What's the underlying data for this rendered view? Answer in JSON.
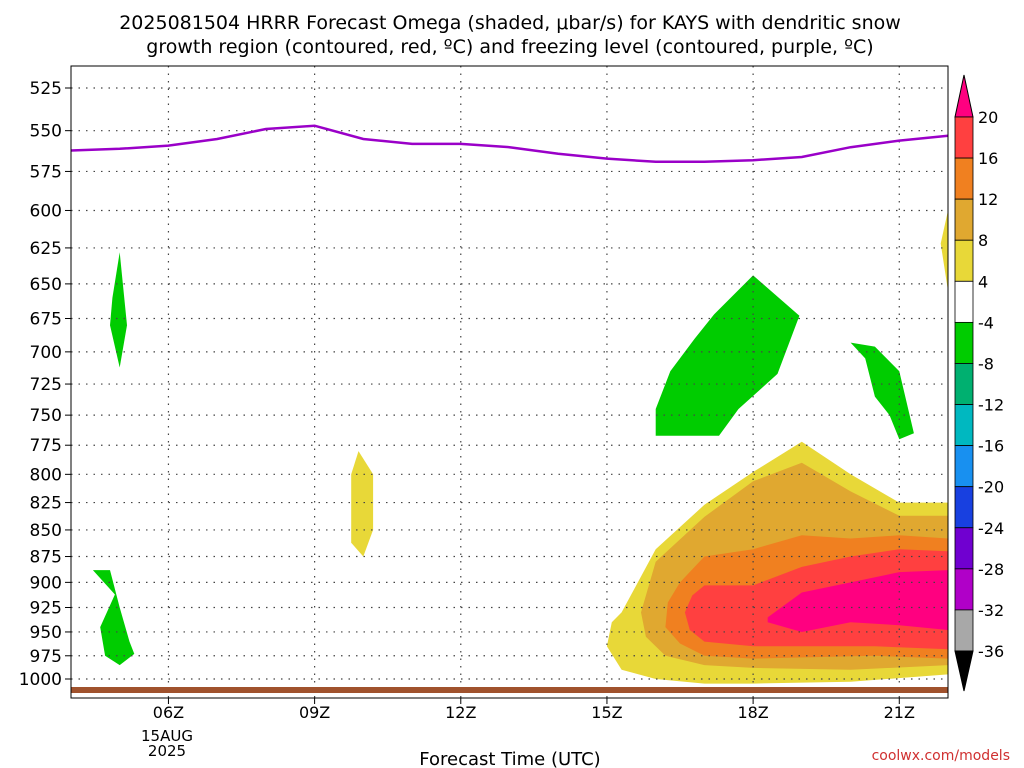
{
  "chart_data": {
    "type": "heatmap",
    "title_lines": [
      "2025081504 HRRR Forecast Omega (shaded, μbar/s) for KAYS with dendritic snow",
      "growth region (contoured, red, ºC) and freezing level (contoured, purple, ºC)"
    ],
    "xlabel": "Forecast Time (UTC)",
    "ylabel": "",
    "x_ticks": [
      "06Z",
      "09Z",
      "12Z",
      "15Z",
      "18Z",
      "21Z"
    ],
    "x_tick_hours": [
      6,
      9,
      12,
      15,
      18,
      21
    ],
    "date_label": [
      "15AUG",
      "2025"
    ],
    "xlim": [
      4.0,
      22.0
    ],
    "y_ticks": [
      525,
      550,
      575,
      600,
      625,
      650,
      675,
      700,
      725,
      750,
      775,
      800,
      825,
      850,
      875,
      900,
      925,
      950,
      975,
      1000
    ],
    "yscale": "log-pressure",
    "ylim": [
      1010,
      512
    ],
    "grid": true,
    "colorbar": {
      "labels": [
        "20",
        "16",
        "12",
        "8",
        "4",
        "-4",
        "-8",
        "-12",
        "-16",
        "-20",
        "-24",
        "-28",
        "-32",
        "-36"
      ],
      "colors": [
        "#ff0080",
        "#ff4040",
        "#f08020",
        "#e0a830",
        "#e8d838",
        "#ffffff",
        "#00cc00",
        "#00b070",
        "#00b8c0",
        "#1890f0",
        "#1840e0",
        "#7000d0",
        "#b000c8",
        "#a8a8a8",
        "#000000"
      ]
    },
    "freezing_level": {
      "color": "#9a00c8",
      "x": [
        4.0,
        5.0,
        6.0,
        7.0,
        8.0,
        9.0,
        10.0,
        11.0,
        12.0,
        13.0,
        14.0,
        15.0,
        16.0,
        17.0,
        18.0,
        19.0,
        20.0,
        21.0,
        22.0
      ],
      "y": [
        562,
        561,
        559,
        555,
        549,
        547,
        555,
        558,
        558,
        560,
        564,
        567,
        569,
        569,
        568,
        566,
        560,
        556,
        553
      ]
    },
    "surface_color": "#a0522d",
    "omega_regions": [
      {
        "color": "#00cc00",
        "x": [
          5.0,
          5.15,
          5.0,
          4.8,
          4.85
        ],
        "y": [
          628,
          680,
          712,
          680,
          660
        ]
      },
      {
        "color": "#00cc00",
        "x": [
          4.45,
          4.8,
          5.0,
          5.2,
          5.3,
          5.0,
          4.7,
          4.6,
          4.9
        ],
        "y": [
          888,
          888,
          925,
          960,
          973,
          985,
          975,
          945,
          912
        ]
      },
      {
        "color": "#e8d838",
        "x": [
          9.9,
          10.2,
          10.2,
          10.0,
          9.75,
          9.75
        ],
        "y": [
          780,
          800,
          850,
          875,
          862,
          800
        ]
      },
      {
        "color": "#00cc00",
        "x": [
          18.0,
          18.95,
          18.5,
          17.7,
          17.3,
          16.0,
          16.0,
          16.3,
          16.8,
          17.2
        ],
        "y": [
          644,
          673,
          717,
          745,
          767,
          767,
          745,
          715,
          690,
          672
        ]
      },
      {
        "color": "#00cc00",
        "x": [
          20.0,
          20.5,
          21.0,
          21.3,
          21.0,
          20.8,
          20.5,
          20.3
        ],
        "y": [
          693,
          696,
          715,
          765,
          770,
          750,
          735,
          705
        ]
      },
      {
        "color": "#e8d838",
        "x": [
          15.3,
          16.0,
          17.0,
          18.0,
          19.0,
          20.0,
          21.0,
          22.0,
          22.0,
          20.0,
          18.0,
          17.0,
          16.0,
          15.3,
          15.0,
          15.1
        ],
        "y": [
          930,
          868,
          827,
          798,
          772,
          800,
          825,
          825,
          995,
          1003,
          1005,
          1005,
          1000,
          990,
          965,
          940
        ]
      },
      {
        "color": "#e0a830",
        "x": [
          16.0,
          17.0,
          18.0,
          19.0,
          20.0,
          21.0,
          22.0,
          22.0,
          20.0,
          18.0,
          17.0,
          16.2,
          15.8,
          15.7
        ],
        "y": [
          880,
          838,
          806,
          790,
          815,
          837,
          837,
          985,
          990,
          988,
          985,
          975,
          955,
          930
        ]
      },
      {
        "color": "#f08020",
        "x": [
          16.5,
          17.0,
          18.0,
          19.0,
          20.0,
          21.0,
          22.0,
          22.0,
          20.5,
          18.0,
          17.0,
          16.5,
          16.2,
          16.25
        ],
        "y": [
          900,
          875,
          868,
          855,
          858,
          855,
          858,
          978,
          975,
          978,
          975,
          962,
          945,
          920
        ]
      },
      {
        "color": "#ff4040",
        "x": [
          17.0,
          18.0,
          19.0,
          20.0,
          21.0,
          22.0,
          22.0,
          20.5,
          19.0,
          18.0,
          17.0,
          16.7,
          16.6,
          16.75
        ],
        "y": [
          903,
          903,
          885,
          875,
          868,
          870,
          968,
          965,
          965,
          965,
          960,
          948,
          930,
          913
        ]
      },
      {
        "color": "#ff0080",
        "x": [
          18.3,
          19.0,
          20.0,
          21.0,
          22.0,
          22.0,
          21.0,
          20.0,
          19.0,
          18.3
        ],
        "y": [
          935,
          910,
          900,
          890,
          888,
          948,
          943,
          940,
          950,
          940
        ]
      },
      {
        "color": "#e8d838",
        "x": [
          22.0,
          21.85,
          22.0
        ],
        "y": [
          600,
          622,
          655
        ]
      }
    ]
  },
  "credit": "coolwx.com/models"
}
